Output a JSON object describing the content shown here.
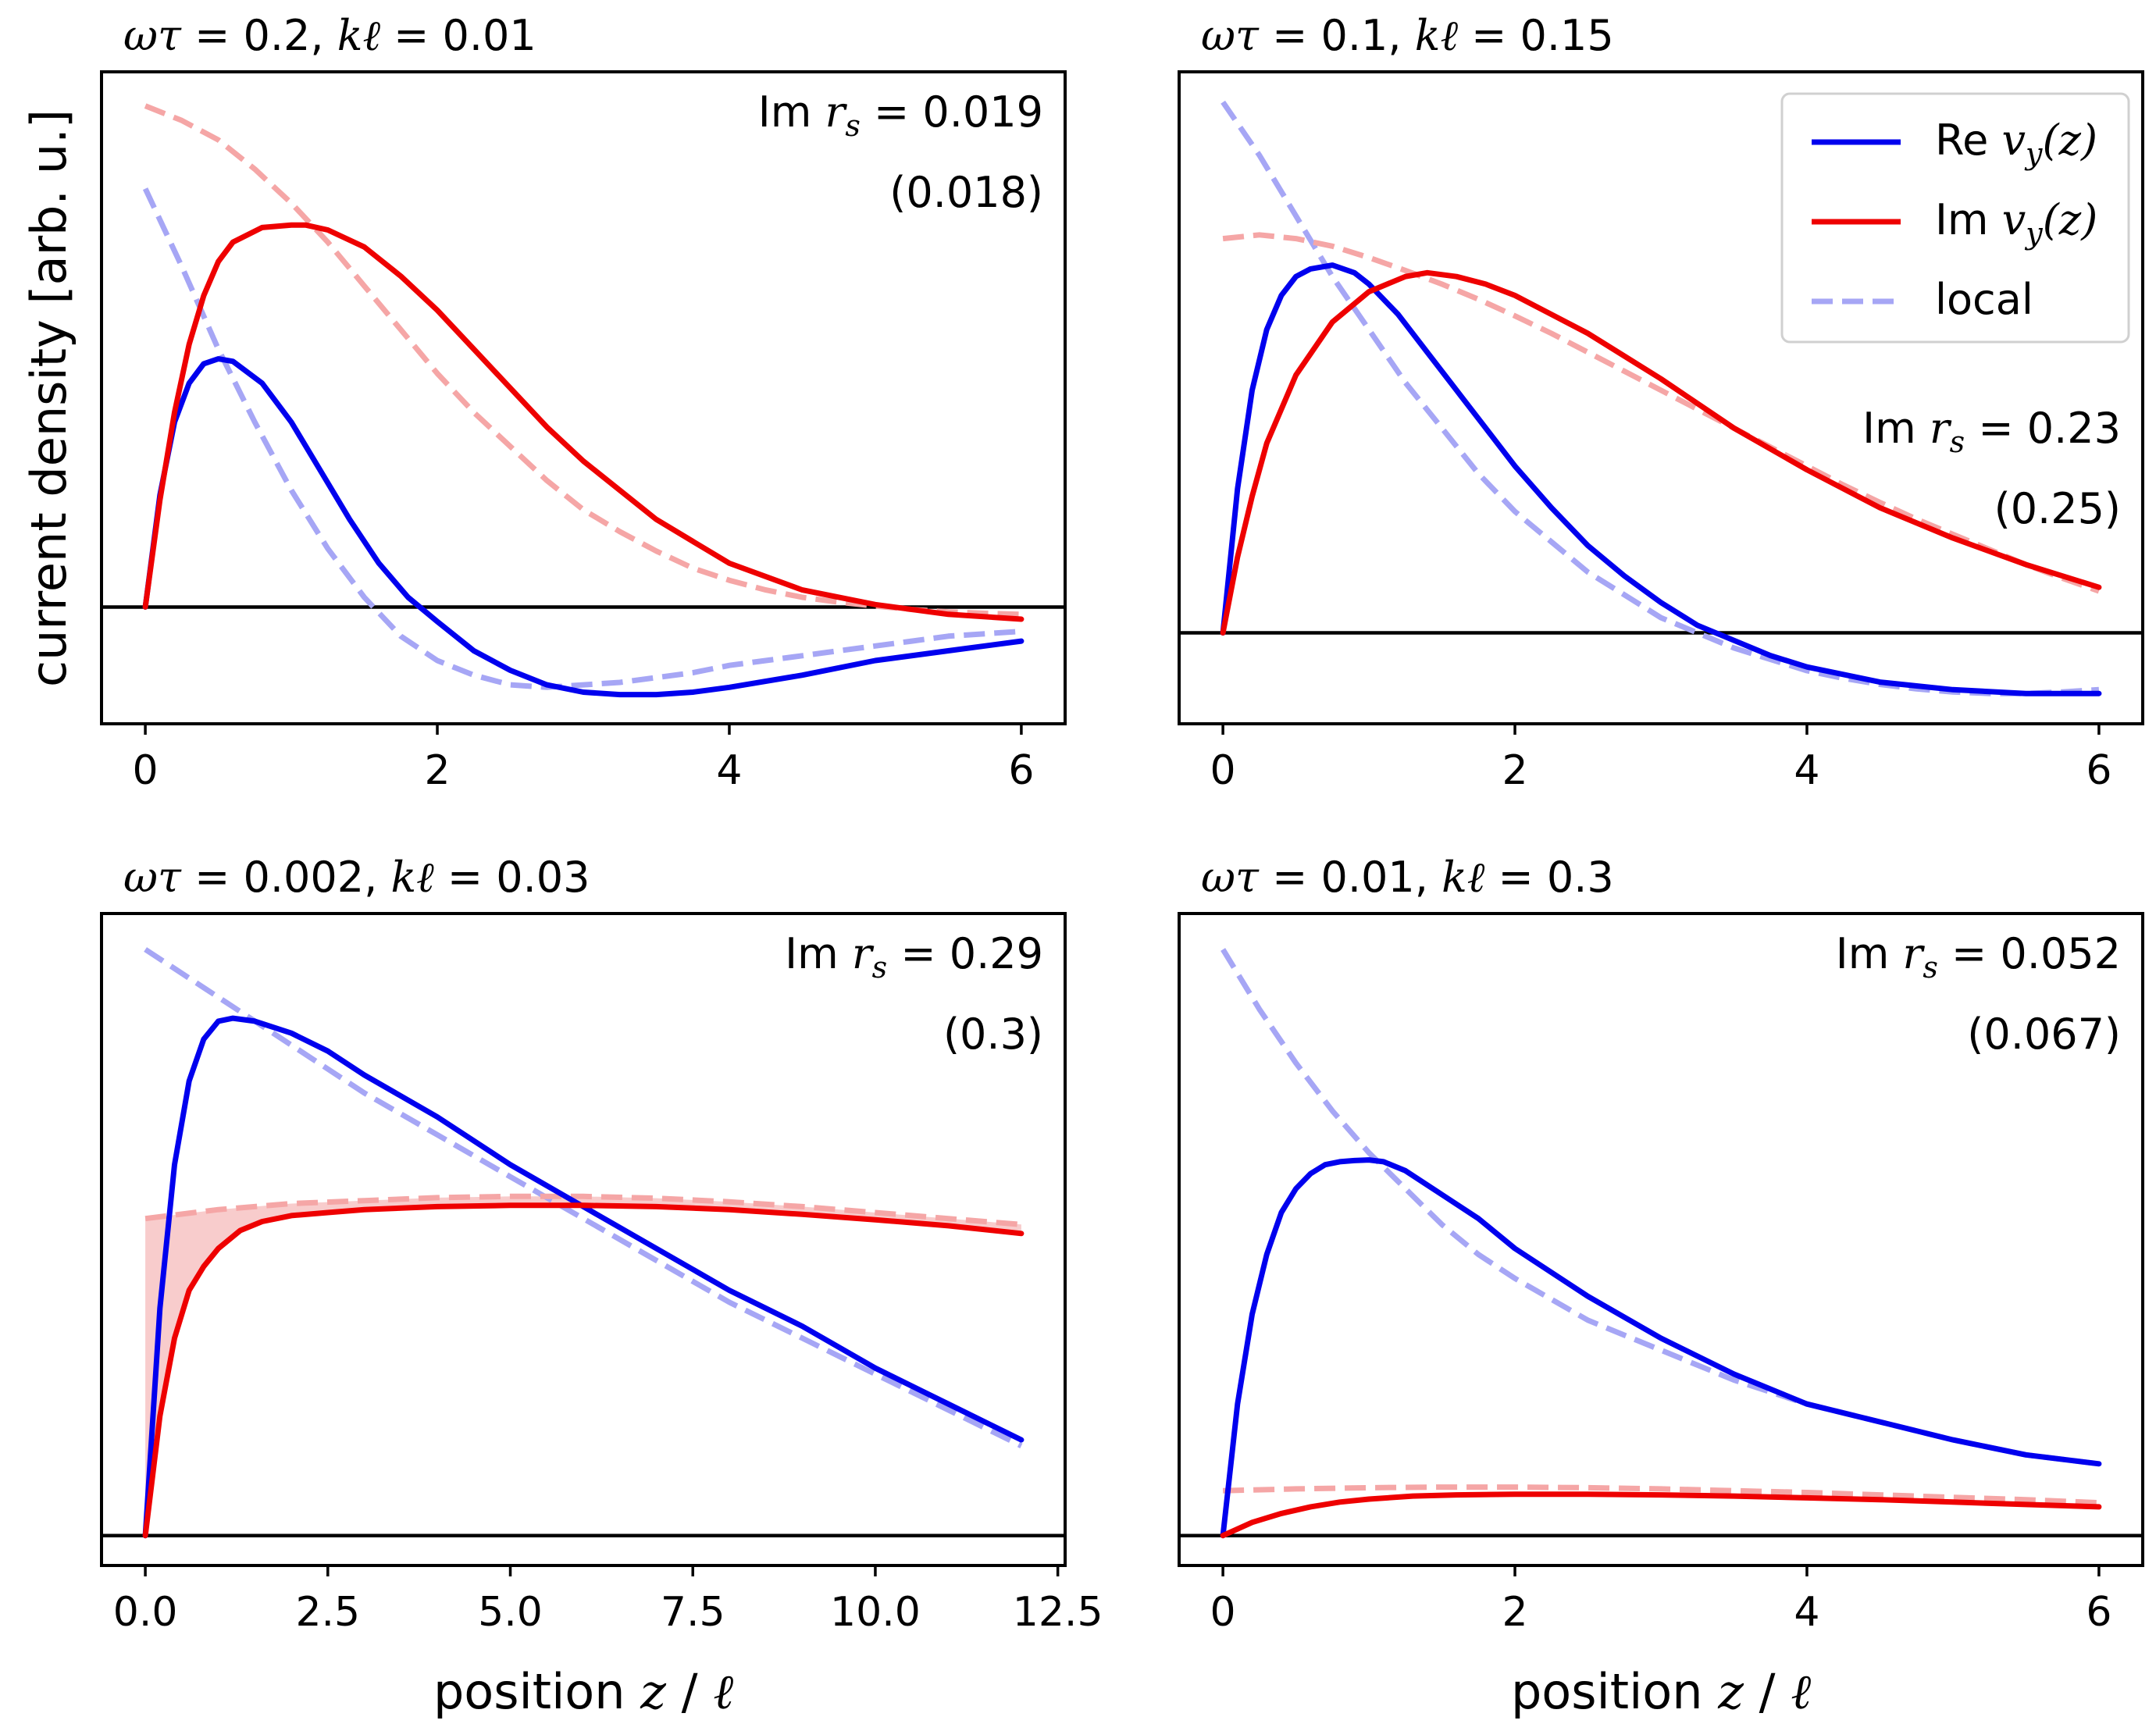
{
  "figure": {
    "ylabel": "current density [arb. u.]",
    "xlabel_prefix": "position ",
    "xlabel_var": "z",
    "xlabel_sep": " / ",
    "xlabel_unit": "ℓ"
  },
  "legend": {
    "entries": [
      {
        "prefix": "Re ",
        "var": "v",
        "sub": "y",
        "suffix": "(z)",
        "color": "#0000ee",
        "style": "solid"
      },
      {
        "prefix": "Im ",
        "var": "v",
        "sub": "y",
        "suffix": "(z)",
        "color": "#ee0000",
        "style": "solid"
      },
      {
        "prefix": "",
        "var": "",
        "sub": "",
        "suffix": "local",
        "color": "#a6a6f5",
        "style": "dashed"
      }
    ]
  },
  "colors": {
    "re": "#0000ee",
    "im": "#ee0000",
    "re_local": "#a6a6f5",
    "im_local": "#f5a6a6",
    "fill": "#f7c3c3",
    "axis": "#000000"
  },
  "chart_data": [
    {
      "type": "line",
      "title_omega": "0.2",
      "title_kl": "0.01",
      "annotation_value": "0.019",
      "annotation_paren": "(0.018)",
      "xticks": [
        0,
        2,
        4,
        6
      ],
      "xtick_labels": [
        "0",
        "2",
        "4",
        "6"
      ],
      "xlim": [
        -0.3,
        6.3
      ],
      "ylim": [
        -0.24,
        1.1
      ],
      "baseline": 0,
      "fill_between": false,
      "series": [
        {
          "name": "Re local",
          "style": "dashed",
          "color": "re_local",
          "x": [
            0,
            0.25,
            0.5,
            0.75,
            1,
            1.25,
            1.5,
            1.75,
            2,
            2.25,
            2.5,
            2.75,
            3,
            3.25,
            3.5,
            3.75,
            4,
            4.25,
            4.5,
            4.75,
            5,
            5.25,
            5.5,
            5.75,
            6
          ],
          "y": [
            0.86,
            0.7,
            0.53,
            0.38,
            0.24,
            0.12,
            0.02,
            -0.06,
            -0.11,
            -0.14,
            -0.16,
            -0.165,
            -0.16,
            -0.155,
            -0.145,
            -0.135,
            -0.12,
            -0.11,
            -0.1,
            -0.09,
            -0.08,
            -0.07,
            -0.06,
            -0.055,
            -0.05
          ]
        },
        {
          "name": "Im local",
          "style": "dashed",
          "color": "im_local",
          "x": [
            0,
            0.25,
            0.5,
            0.75,
            1,
            1.25,
            1.5,
            1.75,
            2,
            2.25,
            2.5,
            2.75,
            3,
            3.25,
            3.5,
            3.75,
            4,
            4.25,
            4.5,
            4.75,
            5,
            5.25,
            5.5,
            5.75,
            6
          ],
          "y": [
            1.03,
            1.0,
            0.96,
            0.9,
            0.83,
            0.75,
            0.66,
            0.57,
            0.48,
            0.4,
            0.33,
            0.26,
            0.2,
            0.155,
            0.115,
            0.08,
            0.055,
            0.035,
            0.02,
            0.01,
            0.002,
            -0.005,
            -0.01,
            -0.013,
            -0.015
          ]
        },
        {
          "name": "Re v_y(z)",
          "style": "solid",
          "color": "re",
          "x": [
            0,
            0.1,
            0.2,
            0.3,
            0.4,
            0.5,
            0.6,
            0.8,
            1,
            1.2,
            1.4,
            1.6,
            1.8,
            2,
            2.25,
            2.5,
            2.75,
            3,
            3.25,
            3.5,
            3.75,
            4,
            4.5,
            5,
            5.5,
            6
          ],
          "y": [
            0,
            0.23,
            0.38,
            0.46,
            0.5,
            0.51,
            0.505,
            0.46,
            0.38,
            0.28,
            0.18,
            0.09,
            0.02,
            -0.03,
            -0.09,
            -0.13,
            -0.16,
            -0.175,
            -0.18,
            -0.18,
            -0.175,
            -0.165,
            -0.14,
            -0.11,
            -0.09,
            -0.07
          ]
        },
        {
          "name": "Im v_y(z)",
          "style": "solid",
          "color": "im",
          "x": [
            0,
            0.1,
            0.2,
            0.3,
            0.4,
            0.5,
            0.6,
            0.8,
            1,
            1.1,
            1.25,
            1.5,
            1.75,
            2,
            2.25,
            2.5,
            2.75,
            3,
            3.5,
            4,
            4.5,
            5,
            5.5,
            6
          ],
          "y": [
            0,
            0.22,
            0.4,
            0.54,
            0.64,
            0.71,
            0.75,
            0.78,
            0.785,
            0.785,
            0.775,
            0.74,
            0.68,
            0.61,
            0.53,
            0.45,
            0.37,
            0.3,
            0.18,
            0.09,
            0.035,
            0.005,
            -0.015,
            -0.025
          ]
        }
      ]
    },
    {
      "type": "line",
      "title_omega": "0.1",
      "title_kl": "0.15",
      "annotation_value": "0.23",
      "annotation_paren": "(0.25)",
      "xticks": [
        0,
        2,
        4,
        6
      ],
      "xtick_labels": [
        "0",
        "2",
        "4",
        "6"
      ],
      "xlim": [
        -0.3,
        6.3
      ],
      "ylim": [
        -0.12,
        0.74
      ],
      "baseline": 0,
      "fill_between": false,
      "legend": true,
      "series": [
        {
          "name": "Re local",
          "style": "dashed",
          "color": "re_local",
          "x": [
            0,
            0.25,
            0.5,
            0.75,
            1,
            1.25,
            1.5,
            1.75,
            2,
            2.25,
            2.5,
            2.75,
            3,
            3.25,
            3.5,
            3.75,
            4,
            4.25,
            4.5,
            4.75,
            5,
            5.25,
            5.5,
            5.75,
            6
          ],
          "y": [
            0.7,
            0.63,
            0.55,
            0.47,
            0.4,
            0.33,
            0.27,
            0.21,
            0.16,
            0.12,
            0.08,
            0.05,
            0.02,
            0.0,
            -0.02,
            -0.035,
            -0.05,
            -0.06,
            -0.068,
            -0.074,
            -0.078,
            -0.08,
            -0.08,
            -0.078,
            -0.075
          ]
        },
        {
          "name": "Im local",
          "style": "dashed",
          "color": "im_local",
          "x": [
            0,
            0.25,
            0.5,
            0.75,
            1,
            1.25,
            1.5,
            1.75,
            2,
            2.25,
            2.5,
            2.75,
            3,
            3.25,
            3.5,
            3.75,
            4,
            4.25,
            4.5,
            4.75,
            5,
            5.25,
            5.5,
            5.75,
            6
          ],
          "y": [
            0.52,
            0.525,
            0.52,
            0.51,
            0.495,
            0.478,
            0.46,
            0.44,
            0.418,
            0.395,
            0.37,
            0.345,
            0.32,
            0.295,
            0.27,
            0.245,
            0.22,
            0.195,
            0.172,
            0.15,
            0.13,
            0.11,
            0.09,
            0.072,
            0.055
          ]
        },
        {
          "name": "Re v_y(z)",
          "style": "solid",
          "color": "re",
          "x": [
            0,
            0.1,
            0.2,
            0.3,
            0.4,
            0.5,
            0.6,
            0.75,
            0.9,
            1,
            1.2,
            1.4,
            1.6,
            1.8,
            2,
            2.25,
            2.5,
            2.75,
            3,
            3.25,
            3.5,
            3.75,
            4,
            4.5,
            5,
            5.5,
            6
          ],
          "y": [
            0,
            0.19,
            0.32,
            0.4,
            0.445,
            0.47,
            0.48,
            0.485,
            0.475,
            0.46,
            0.42,
            0.37,
            0.32,
            0.27,
            0.22,
            0.165,
            0.115,
            0.075,
            0.04,
            0.01,
            -0.01,
            -0.03,
            -0.045,
            -0.065,
            -0.075,
            -0.08,
            -0.08
          ]
        },
        {
          "name": "Im v_y(z)",
          "style": "solid",
          "color": "im",
          "x": [
            0,
            0.1,
            0.2,
            0.3,
            0.5,
            0.75,
            1,
            1.25,
            1.4,
            1.6,
            1.8,
            2,
            2.25,
            2.5,
            2.75,
            3,
            3.5,
            4,
            4.5,
            5,
            5.5,
            6
          ],
          "y": [
            0,
            0.1,
            0.18,
            0.25,
            0.34,
            0.41,
            0.45,
            0.47,
            0.475,
            0.47,
            0.46,
            0.445,
            0.42,
            0.395,
            0.365,
            0.335,
            0.27,
            0.215,
            0.165,
            0.125,
            0.09,
            0.06
          ]
        }
      ]
    },
    {
      "type": "line",
      "title_omega": "0.002",
      "title_kl": "0.03",
      "annotation_value": "0.29",
      "annotation_paren": "(0.3)",
      "xticks": [
        0,
        2.5,
        5,
        7.5,
        10,
        12.5
      ],
      "xtick_labels": [
        "0.0",
        "2.5",
        "5.0",
        "7.5",
        "10.0",
        "12.5"
      ],
      "xlim": [
        -0.6,
        12.6
      ],
      "ylim": [
        -0.05,
        1.04
      ],
      "baseline": 0,
      "fill_between": true,
      "series": [
        {
          "name": "Re local",
          "style": "dashed",
          "color": "re_local",
          "x": [
            0,
            1,
            2,
            3,
            4,
            5,
            6,
            7,
            8,
            9,
            10,
            11,
            12
          ],
          "y": [
            0.98,
            0.9,
            0.82,
            0.74,
            0.67,
            0.6,
            0.53,
            0.46,
            0.39,
            0.33,
            0.27,
            0.21,
            0.15
          ]
        },
        {
          "name": "Im local",
          "style": "dashed",
          "color": "im_local",
          "x": [
            0,
            1,
            2,
            3,
            4,
            5,
            6,
            7,
            8,
            9,
            10,
            11,
            12
          ],
          "y": [
            0.53,
            0.545,
            0.555,
            0.56,
            0.565,
            0.567,
            0.567,
            0.564,
            0.558,
            0.55,
            0.54,
            0.53,
            0.52
          ]
        },
        {
          "name": "Re v_y(z)",
          "style": "solid",
          "color": "re",
          "x": [
            0,
            0.2,
            0.4,
            0.6,
            0.8,
            1,
            1.2,
            1.5,
            2,
            2.5,
            3,
            4,
            5,
            6,
            7,
            8,
            9,
            10,
            11,
            12
          ],
          "y": [
            0,
            0.38,
            0.62,
            0.76,
            0.83,
            0.86,
            0.865,
            0.86,
            0.84,
            0.81,
            0.77,
            0.7,
            0.62,
            0.55,
            0.48,
            0.41,
            0.35,
            0.28,
            0.22,
            0.16
          ]
        },
        {
          "name": "Im v_y(z)",
          "style": "solid",
          "color": "im",
          "x": [
            0,
            0.2,
            0.4,
            0.6,
            0.8,
            1,
            1.3,
            1.6,
            2,
            2.5,
            3,
            4,
            5,
            6,
            7,
            8,
            9,
            10,
            11,
            12
          ],
          "y": [
            0,
            0.2,
            0.33,
            0.41,
            0.45,
            0.48,
            0.51,
            0.525,
            0.535,
            0.54,
            0.545,
            0.55,
            0.552,
            0.552,
            0.55,
            0.545,
            0.537,
            0.528,
            0.518,
            0.505
          ]
        }
      ]
    },
    {
      "type": "line",
      "title_omega": "0.01",
      "title_kl": "0.3",
      "annotation_value": "0.052",
      "annotation_paren": "(0.067)",
      "xticks": [
        0,
        2,
        4,
        6
      ],
      "xtick_labels": [
        "0",
        "2",
        "4",
        "6"
      ],
      "xlim": [
        -0.3,
        6.3
      ],
      "ylim": [
        -0.05,
        1.04
      ],
      "baseline": 0,
      "fill_between": false,
      "series": [
        {
          "name": "Re local",
          "style": "dashed",
          "color": "re_local",
          "x": [
            0,
            0.25,
            0.5,
            0.75,
            1,
            1.25,
            1.5,
            1.75,
            2,
            2.5,
            3,
            3.5,
            4,
            4.5,
            5,
            5.5,
            6
          ],
          "y": [
            0.98,
            0.88,
            0.79,
            0.71,
            0.64,
            0.58,
            0.52,
            0.47,
            0.43,
            0.36,
            0.31,
            0.26,
            0.22,
            0.19,
            0.16,
            0.135,
            0.12
          ]
        },
        {
          "name": "Im local",
          "style": "dashed",
          "color": "im_local",
          "x": [
            0,
            0.5,
            1,
            1.5,
            2,
            2.5,
            3,
            3.5,
            4,
            4.5,
            5,
            5.5,
            6
          ],
          "y": [
            0.075,
            0.078,
            0.08,
            0.081,
            0.081,
            0.08,
            0.078,
            0.075,
            0.072,
            0.068,
            0.064,
            0.06,
            0.055
          ]
        },
        {
          "name": "Re v_y(z)",
          "style": "solid",
          "color": "re",
          "x": [
            0,
            0.1,
            0.2,
            0.3,
            0.4,
            0.5,
            0.6,
            0.7,
            0.8,
            0.9,
            1,
            1.1,
            1.25,
            1.5,
            1.75,
            2,
            2.5,
            3,
            3.5,
            4,
            4.5,
            5,
            5.5,
            6
          ],
          "y": [
            0,
            0.22,
            0.37,
            0.47,
            0.54,
            0.58,
            0.605,
            0.62,
            0.625,
            0.627,
            0.628,
            0.625,
            0.61,
            0.57,
            0.53,
            0.48,
            0.4,
            0.33,
            0.27,
            0.22,
            0.19,
            0.16,
            0.135,
            0.12
          ]
        },
        {
          "name": "Im v_y(z)",
          "style": "solid",
          "color": "im",
          "x": [
            0,
            0.2,
            0.4,
            0.6,
            0.8,
            1,
            1.3,
            1.6,
            2,
            2.5,
            3,
            3.5,
            4,
            4.5,
            5,
            5.5,
            6
          ],
          "y": [
            0,
            0.022,
            0.037,
            0.048,
            0.056,
            0.061,
            0.066,
            0.068,
            0.069,
            0.069,
            0.068,
            0.066,
            0.063,
            0.06,
            0.056,
            0.052,
            0.048
          ]
        }
      ]
    }
  ]
}
